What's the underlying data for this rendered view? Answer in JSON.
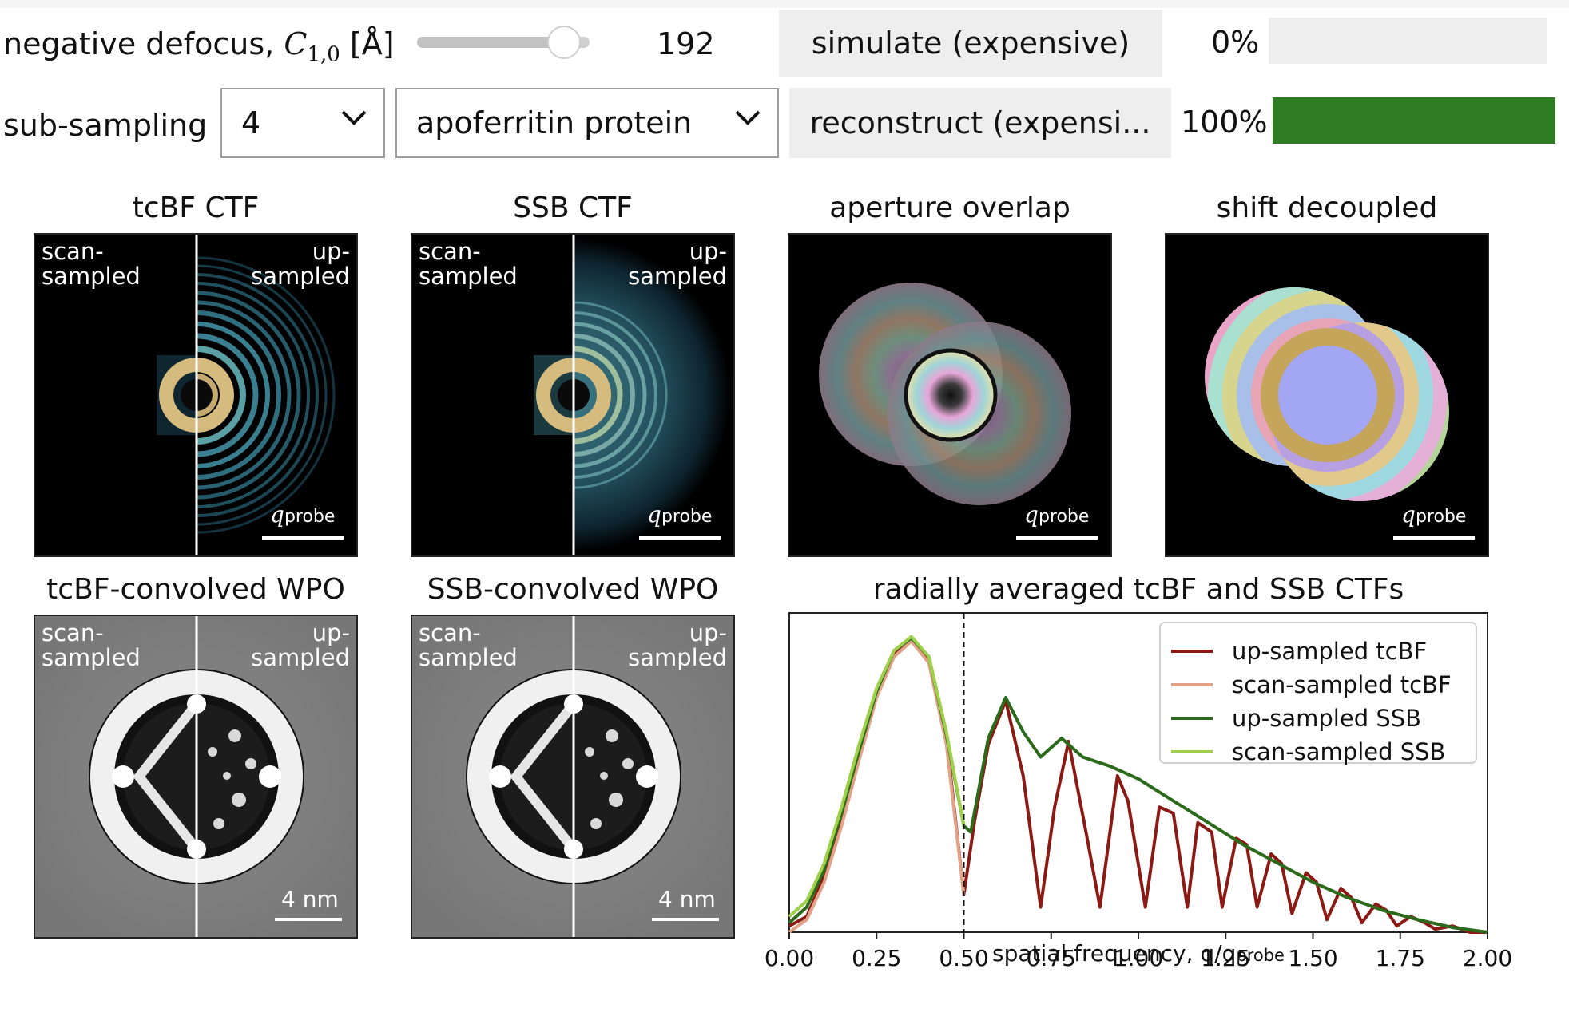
{
  "controls": {
    "defocus_label": "negative defocus,",
    "defocus_symbol": "C",
    "defocus_sub": "1,0",
    "defocus_unit": "[Å]",
    "defocus_value": "192",
    "defocus_slider_fraction": 0.85,
    "simulate_button": "simulate (expensive)",
    "simulate_progress": "0%",
    "simulate_progress_fraction": 0.0,
    "subsampling_label": "sub-sampling",
    "subsampling_value": "4",
    "sample_value": "apoferritin protein",
    "reconstruct_button": "reconstruct (expensi...",
    "reconstruct_progress": "100%",
    "reconstruct_progress_fraction": 1.0,
    "progress_color": "#2f7d22"
  },
  "panels": {
    "tcbf_ctf": {
      "title": "tcBF CTF",
      "left": "scan-\nsampled",
      "right": "up-\nsampled",
      "scale": "q",
      "scale_sub": "probe"
    },
    "ssb_ctf": {
      "title": "SSB CTF",
      "left": "scan-\nsampled",
      "right": "up-\nsampled",
      "scale": "q",
      "scale_sub": "probe"
    },
    "aperture": {
      "title": "aperture overlap",
      "scale": "q",
      "scale_sub": "probe"
    },
    "shift": {
      "title": "shift decoupled",
      "scale": "q",
      "scale_sub": "probe"
    },
    "tcbf_wpo": {
      "title": "tcBF-convolved WPO",
      "left": "scan-\nsampled",
      "right": "up-\nsampled",
      "scale": "4 nm"
    },
    "ssb_wpo": {
      "title": "SSB-convolved WPO",
      "left": "scan-\nsampled",
      "right": "up-\nsampled",
      "scale": "4 nm"
    }
  },
  "chart_data": {
    "type": "line",
    "title": "radially averaged tcBF and SSB CTFs",
    "xlabel": "spatial frequency, q/q",
    "xlabel_sub": "probe",
    "xlim": [
      0,
      2
    ],
    "x_ticks": [
      "0.00",
      "0.25",
      "0.50",
      "0.75",
      "1.00",
      "1.25",
      "1.50",
      "1.75",
      "2.00"
    ],
    "vline_x": 0.5,
    "legend_position": "top-right",
    "series": [
      {
        "name": "up-sampled tcBF",
        "color": "#8b1a14",
        "points": [
          [
            0,
            0.02
          ],
          [
            0.05,
            0.05
          ],
          [
            0.1,
            0.18
          ],
          [
            0.15,
            0.36
          ],
          [
            0.2,
            0.57
          ],
          [
            0.25,
            0.76
          ],
          [
            0.3,
            0.89
          ],
          [
            0.35,
            0.94
          ],
          [
            0.4,
            0.87
          ],
          [
            0.45,
            0.62
          ],
          [
            0.5,
            0.12
          ],
          [
            0.53,
            0.35
          ],
          [
            0.57,
            0.6
          ],
          [
            0.62,
            0.74
          ],
          [
            0.67,
            0.5
          ],
          [
            0.72,
            0.08
          ],
          [
            0.76,
            0.4
          ],
          [
            0.8,
            0.61
          ],
          [
            0.85,
            0.32
          ],
          [
            0.89,
            0.08
          ],
          [
            0.94,
            0.5
          ],
          [
            0.97,
            0.42
          ],
          [
            1.02,
            0.08
          ],
          [
            1.06,
            0.4
          ],
          [
            1.1,
            0.38
          ],
          [
            1.14,
            0.08
          ],
          [
            1.17,
            0.35
          ],
          [
            1.21,
            0.32
          ],
          [
            1.24,
            0.08
          ],
          [
            1.28,
            0.3
          ],
          [
            1.31,
            0.28
          ],
          [
            1.34,
            0.08
          ],
          [
            1.38,
            0.25
          ],
          [
            1.41,
            0.22
          ],
          [
            1.44,
            0.06
          ],
          [
            1.48,
            0.19
          ],
          [
            1.51,
            0.16
          ],
          [
            1.54,
            0.04
          ],
          [
            1.58,
            0.14
          ],
          [
            1.61,
            0.11
          ],
          [
            1.64,
            0.03
          ],
          [
            1.68,
            0.09
          ],
          [
            1.71,
            0.07
          ],
          [
            1.74,
            0.02
          ],
          [
            1.78,
            0.05
          ],
          [
            1.82,
            0.03
          ],
          [
            1.85,
            0.01
          ],
          [
            1.9,
            0.02
          ],
          [
            1.95,
            0.0
          ],
          [
            2.0,
            0.0
          ]
        ]
      },
      {
        "name": "scan-sampled tcBF",
        "color": "#e2a288",
        "points": [
          [
            0,
            0.0
          ],
          [
            0.05,
            0.04
          ],
          [
            0.1,
            0.16
          ],
          [
            0.15,
            0.34
          ],
          [
            0.2,
            0.55
          ],
          [
            0.25,
            0.75
          ],
          [
            0.3,
            0.88
          ],
          [
            0.35,
            0.93
          ],
          [
            0.4,
            0.86
          ],
          [
            0.45,
            0.6
          ],
          [
            0.5,
            0.12
          ]
        ]
      },
      {
        "name": "up-sampled SSB",
        "color": "#2a6a1a",
        "points": [
          [
            0.0,
            0.03
          ],
          [
            0.05,
            0.08
          ],
          [
            0.1,
            0.2
          ],
          [
            0.15,
            0.38
          ],
          [
            0.2,
            0.58
          ],
          [
            0.25,
            0.77
          ],
          [
            0.3,
            0.9
          ],
          [
            0.35,
            0.94
          ],
          [
            0.4,
            0.88
          ],
          [
            0.45,
            0.63
          ],
          [
            0.5,
            0.34
          ],
          [
            0.52,
            0.32
          ],
          [
            0.57,
            0.62
          ],
          [
            0.62,
            0.75
          ],
          [
            0.67,
            0.64
          ],
          [
            0.72,
            0.56
          ],
          [
            0.78,
            0.62
          ],
          [
            0.84,
            0.56
          ],
          [
            0.92,
            0.53
          ],
          [
            1.0,
            0.49
          ],
          [
            1.1,
            0.42
          ],
          [
            1.2,
            0.35
          ],
          [
            1.3,
            0.28
          ],
          [
            1.4,
            0.22
          ],
          [
            1.5,
            0.16
          ],
          [
            1.6,
            0.11
          ],
          [
            1.7,
            0.07
          ],
          [
            1.8,
            0.04
          ],
          [
            1.9,
            0.015
          ],
          [
            2.0,
            0.0
          ]
        ]
      },
      {
        "name": "scan-sampled SSB",
        "color": "#9ed04a",
        "points": [
          [
            0.0,
            0.05
          ],
          [
            0.05,
            0.1
          ],
          [
            0.1,
            0.22
          ],
          [
            0.15,
            0.4
          ],
          [
            0.2,
            0.6
          ],
          [
            0.25,
            0.78
          ],
          [
            0.3,
            0.9
          ],
          [
            0.35,
            0.945
          ],
          [
            0.4,
            0.88
          ],
          [
            0.45,
            0.64
          ],
          [
            0.5,
            0.34
          ]
        ]
      }
    ]
  }
}
